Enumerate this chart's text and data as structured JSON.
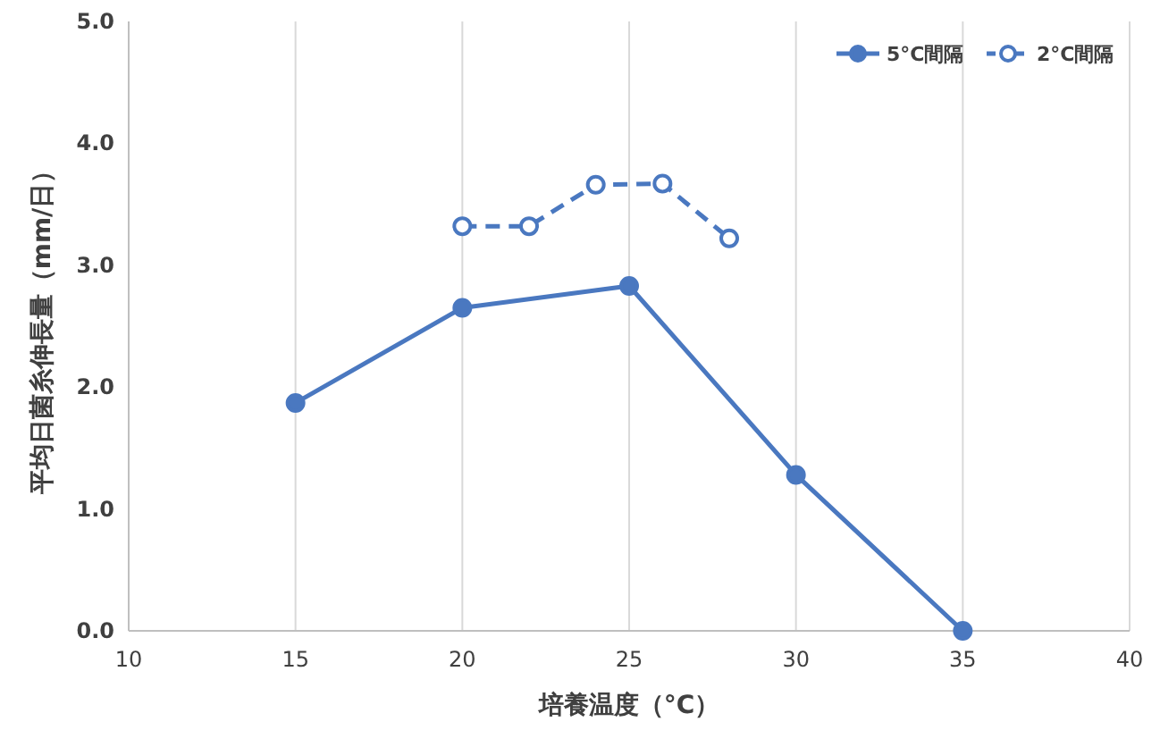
{
  "chart_data": {
    "type": "line",
    "xlabel": "培養温度（°C）",
    "ylabel": "平均日菌糸伸長量（mm/日）",
    "xlim": [
      10,
      40
    ],
    "xticks": [
      10,
      15,
      20,
      25,
      30,
      35,
      40
    ],
    "ylim": [
      0,
      5
    ],
    "yticks": [
      {
        "value": 0,
        "label": "0.0"
      },
      {
        "value": 1,
        "label": "1.0"
      },
      {
        "value": 2,
        "label": "2.0"
      },
      {
        "value": 3,
        "label": "3.0"
      },
      {
        "value": 4,
        "label": "4.0"
      },
      {
        "value": 5,
        "label": "5.0"
      }
    ],
    "grid": "x",
    "legend": "top right",
    "marker": "circle",
    "series": [
      {
        "name": "5°C間隔",
        "color": "#4a78c0",
        "line_style": "solid",
        "x": [
          15,
          20,
          25,
          30,
          35
        ],
        "values": [
          1.87,
          2.65,
          2.83,
          1.28,
          0.0
        ]
      },
      {
        "name": "2°C間隔",
        "color": "#4a78c0",
        "line_style": "dashed",
        "x": [
          20,
          22,
          24,
          26,
          28
        ],
        "values": [
          3.32,
          3.32,
          3.66,
          3.67,
          3.22
        ]
      }
    ]
  }
}
